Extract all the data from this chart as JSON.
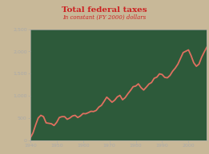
{
  "title": "Total federal taxes",
  "subtitle": "In constant (FY 2000) dollars",
  "title_color": "#cc2222",
  "subtitle_color": "#cc2222",
  "line_color": "#e07060",
  "axes_facecolor": "#2d5a3a",
  "outer_background": "#c8b898",
  "text_color": "#cccccc",
  "tick_color": "#aaaaaa",
  "xlim": [
    1940,
    2007
  ],
  "ylim": [
    0,
    2500
  ],
  "xticks": [
    1940,
    1950,
    1960,
    1970,
    1980,
    1990,
    2000
  ],
  "yticks": [
    0,
    500,
    1000,
    1500,
    2000,
    2500
  ],
  "ytick_labels": [
    "0",
    "500",
    "1,000",
    "1,500",
    "2,000",
    "2,500"
  ],
  "years": [
    1940,
    1941,
    1942,
    1943,
    1944,
    1945,
    1946,
    1947,
    1948,
    1949,
    1950,
    1951,
    1952,
    1953,
    1954,
    1955,
    1956,
    1957,
    1958,
    1959,
    1960,
    1961,
    1962,
    1963,
    1964,
    1965,
    1966,
    1967,
    1968,
    1969,
    1970,
    1971,
    1972,
    1973,
    1974,
    1975,
    1976,
    1977,
    1978,
    1979,
    1980,
    1981,
    1982,
    1983,
    1984,
    1985,
    1986,
    1987,
    1988,
    1989,
    1990,
    1991,
    1992,
    1993,
    1994,
    1995,
    1996,
    1997,
    1998,
    1999,
    2000,
    2001,
    2002,
    2003,
    2004,
    2005,
    2006,
    2007
  ],
  "values": [
    50,
    160,
    340,
    500,
    560,
    530,
    390,
    380,
    370,
    330,
    400,
    510,
    530,
    530,
    470,
    500,
    545,
    560,
    510,
    545,
    600,
    595,
    620,
    650,
    645,
    670,
    745,
    785,
    875,
    970,
    915,
    855,
    900,
    975,
    1010,
    910,
    960,
    1045,
    1120,
    1205,
    1220,
    1270,
    1185,
    1130,
    1195,
    1265,
    1300,
    1395,
    1420,
    1495,
    1480,
    1415,
    1405,
    1460,
    1555,
    1625,
    1715,
    1845,
    1975,
    2005,
    2035,
    1905,
    1745,
    1665,
    1715,
    1870,
    1990,
    2100
  ],
  "line_width": 1.3,
  "figsize": [
    2.61,
    1.93
  ],
  "dpi": 100
}
